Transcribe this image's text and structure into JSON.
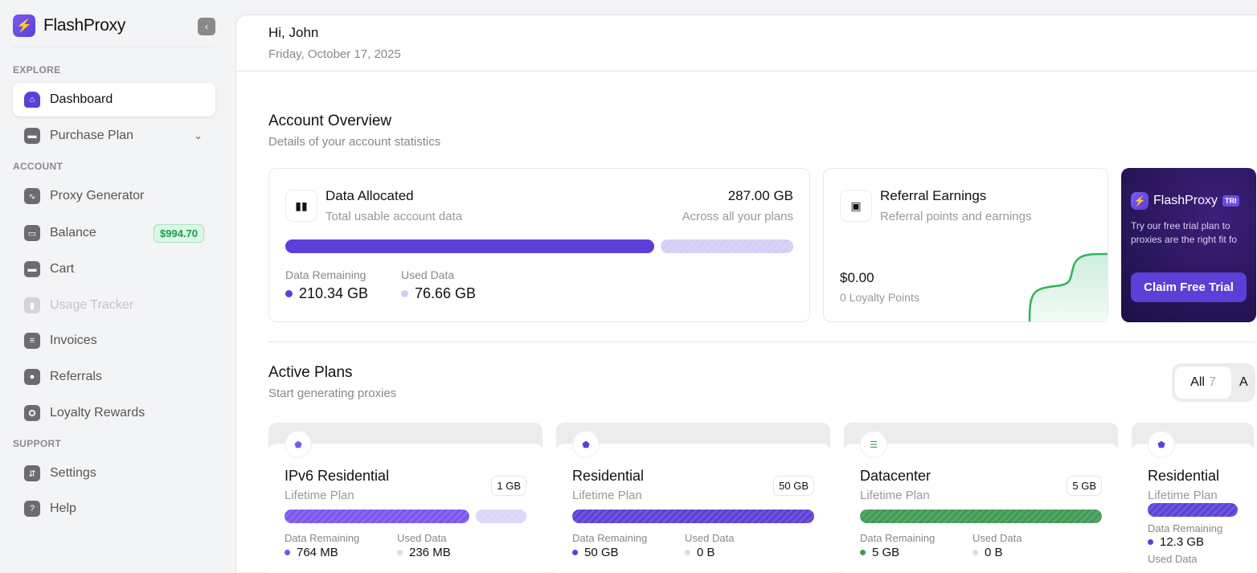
{
  "brand": {
    "name": "FlashProxy",
    "logo_icon": "lightning-icon"
  },
  "sidebar": {
    "sections": [
      "EXPLORE",
      "ACCOUNT",
      "SUPPORT"
    ],
    "items": [
      {
        "label": "Dashboard",
        "icon": "home-icon",
        "active": true
      },
      {
        "label": "Purchase Plan",
        "icon": "cart-icon"
      },
      {
        "label": "Proxy Generator",
        "icon": "chart-icon"
      },
      {
        "label": "Balance",
        "icon": "wallet-icon",
        "badge": "$994.70"
      },
      {
        "label": "Cart",
        "icon": "cart-icon"
      },
      {
        "label": "Usage Tracker",
        "icon": "bar-chart-icon",
        "disabled": true
      },
      {
        "label": "Invoices",
        "icon": "receipt-icon"
      },
      {
        "label": "Referrals",
        "icon": "users-icon"
      },
      {
        "label": "Loyalty Rewards",
        "icon": "award-icon"
      },
      {
        "label": "Settings",
        "icon": "sliders-icon"
      },
      {
        "label": "Help",
        "icon": "help-icon"
      }
    ]
  },
  "header": {
    "greeting": "Hi, John",
    "date": "Friday, October 17, 2025"
  },
  "overview": {
    "title": "Account Overview",
    "subtitle": "Details of your account statistics"
  },
  "data_card": {
    "title": "Data Allocated",
    "subtitle": "Total usable account data",
    "total": "287.00 GB",
    "total_note": "Across all your plans",
    "remaining_label": "Data Remaining",
    "remaining": "210.34 GB",
    "used_label": "Used Data",
    "used": "76.66 GB",
    "remaining_fraction": 0.733,
    "colors": {
      "remaining": "#5b3fd6",
      "used": "#d6cdf5"
    }
  },
  "referral_card": {
    "title": "Referral Earnings",
    "subtitle": "Referral points and earnings",
    "amount": "$0.00",
    "points": "0 Loyalty Points"
  },
  "promo": {
    "brand": "FlashProxy",
    "tag": "TRI",
    "text": "Try our free trial plan to proxies are the right fit fo",
    "button": "Claim Free Trial"
  },
  "plans_section": {
    "title": "Active Plans",
    "subtitle": "Start generating proxies",
    "filter_all": "All",
    "filter_count": "7",
    "filter_next": "A"
  },
  "plans": [
    {
      "name": "IPv6 Residential",
      "kind": "Lifetime Plan",
      "size": "1 GB",
      "remaining_label": "Data Remaining",
      "used_label": "Used Data",
      "remaining": "764 MB",
      "used": "236 MB",
      "remaining_fraction": 0.764,
      "color": "#7b55ee",
      "icon": "home-icon"
    },
    {
      "name": "Residential",
      "kind": "Lifetime Plan",
      "size": "50 GB",
      "remaining_label": "Data Remaining",
      "used_label": "Used Data",
      "remaining": "50 GB",
      "used": "0 B",
      "remaining_fraction": 1,
      "color": "#5b3fd6",
      "icon": "home-icon"
    },
    {
      "name": "Datacenter",
      "kind": "Lifetime Plan",
      "size": "5 GB",
      "remaining_label": "Data Remaining",
      "used_label": "Used Data",
      "remaining": "5 GB",
      "used": "0 B",
      "remaining_fraction": 1,
      "color": "#3f9a55",
      "icon": "server-icon"
    },
    {
      "name": "Residential",
      "kind": "Lifetime Plan",
      "size": "",
      "remaining_label": "Data Remaining",
      "used_label": "Used Data",
      "remaining": "12.3 GB",
      "used": "",
      "remaining_fraction": 1,
      "color": "#5b3fd6",
      "icon": "home-icon"
    }
  ]
}
